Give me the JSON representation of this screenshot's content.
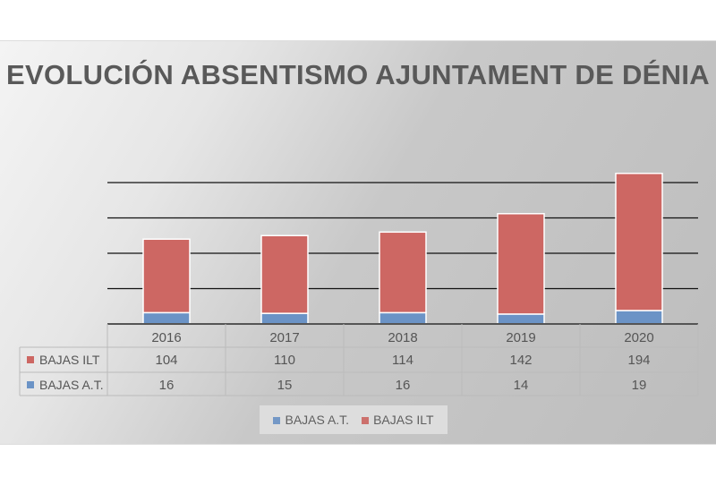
{
  "chart_data": {
    "type": "bar",
    "stacked": true,
    "title": "EVOLUCIÓN ABSENTISMO AJUNTAMENT DE DÉNIA",
    "categories": [
      "2016",
      "2017",
      "2018",
      "2019",
      "2020"
    ],
    "series": [
      {
        "name": "BAJAS A.T.",
        "values": [
          16,
          15,
          16,
          14,
          19
        ],
        "color": "#6b93c6"
      },
      {
        "name": "BAJAS ILT",
        "values": [
          104,
          110,
          114,
          142,
          194
        ],
        "color": "#cd6763"
      }
    ],
    "ylim": [
      0,
      200
    ],
    "gridlines": [
      50,
      100,
      150,
      200
    ],
    "grid": true,
    "data_table": true,
    "legend": "bottom"
  }
}
